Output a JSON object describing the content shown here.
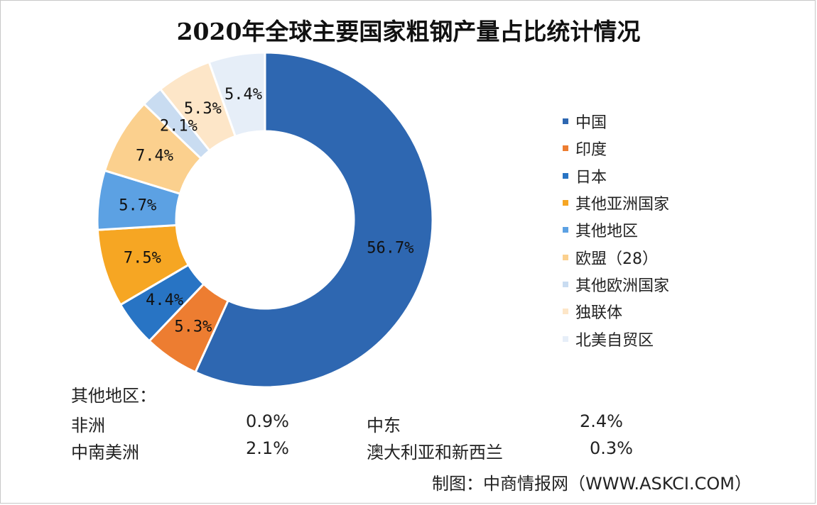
{
  "chart_data": {
    "type": "pie",
    "title": "2020年全球主要国家粗钢产量占比统计情况",
    "slices": [
      {
        "label": "中国",
        "value": 56.7,
        "display": "56.7%",
        "color": "#2e67b1"
      },
      {
        "label": "印度",
        "value": 5.3,
        "display": "5.3%",
        "color": "#ed7d31"
      },
      {
        "label": "日本",
        "value": 4.4,
        "display": "4.4%",
        "color": "#2874c4"
      },
      {
        "label": "其他亚洲国家",
        "value": 7.5,
        "display": "7.5%",
        "color": "#f6a623"
      },
      {
        "label": "其他地区",
        "value": 5.7,
        "display": "5.7%",
        "color": "#5ca1e3"
      },
      {
        "label": "欧盟（28）",
        "value": 7.4,
        "display": "7.4%",
        "color": "#fbd08e"
      },
      {
        "label": "其他欧洲国家",
        "value": 2.1,
        "display": "2.1%",
        "color": "#c9dcf1"
      },
      {
        "label": "独联体",
        "value": 5.3,
        "display": "5.3%",
        "color": "#fde6c8"
      },
      {
        "label": "北美自贸区",
        "value": 5.4,
        "display": "5.4%",
        "color": "#e6eef8"
      }
    ],
    "legend_position": "right"
  },
  "other_regions": {
    "heading": "其他地区：",
    "items": [
      {
        "name": "非洲",
        "value": "0.9%"
      },
      {
        "name": "中东",
        "value": "2.4%"
      },
      {
        "name": "中南美洲",
        "value": "2.1%"
      },
      {
        "name": "澳大利亚和新西兰",
        "value": "0.3%"
      }
    ]
  },
  "source": "制图：中商情报网（WWW.ASKCI.COM）"
}
